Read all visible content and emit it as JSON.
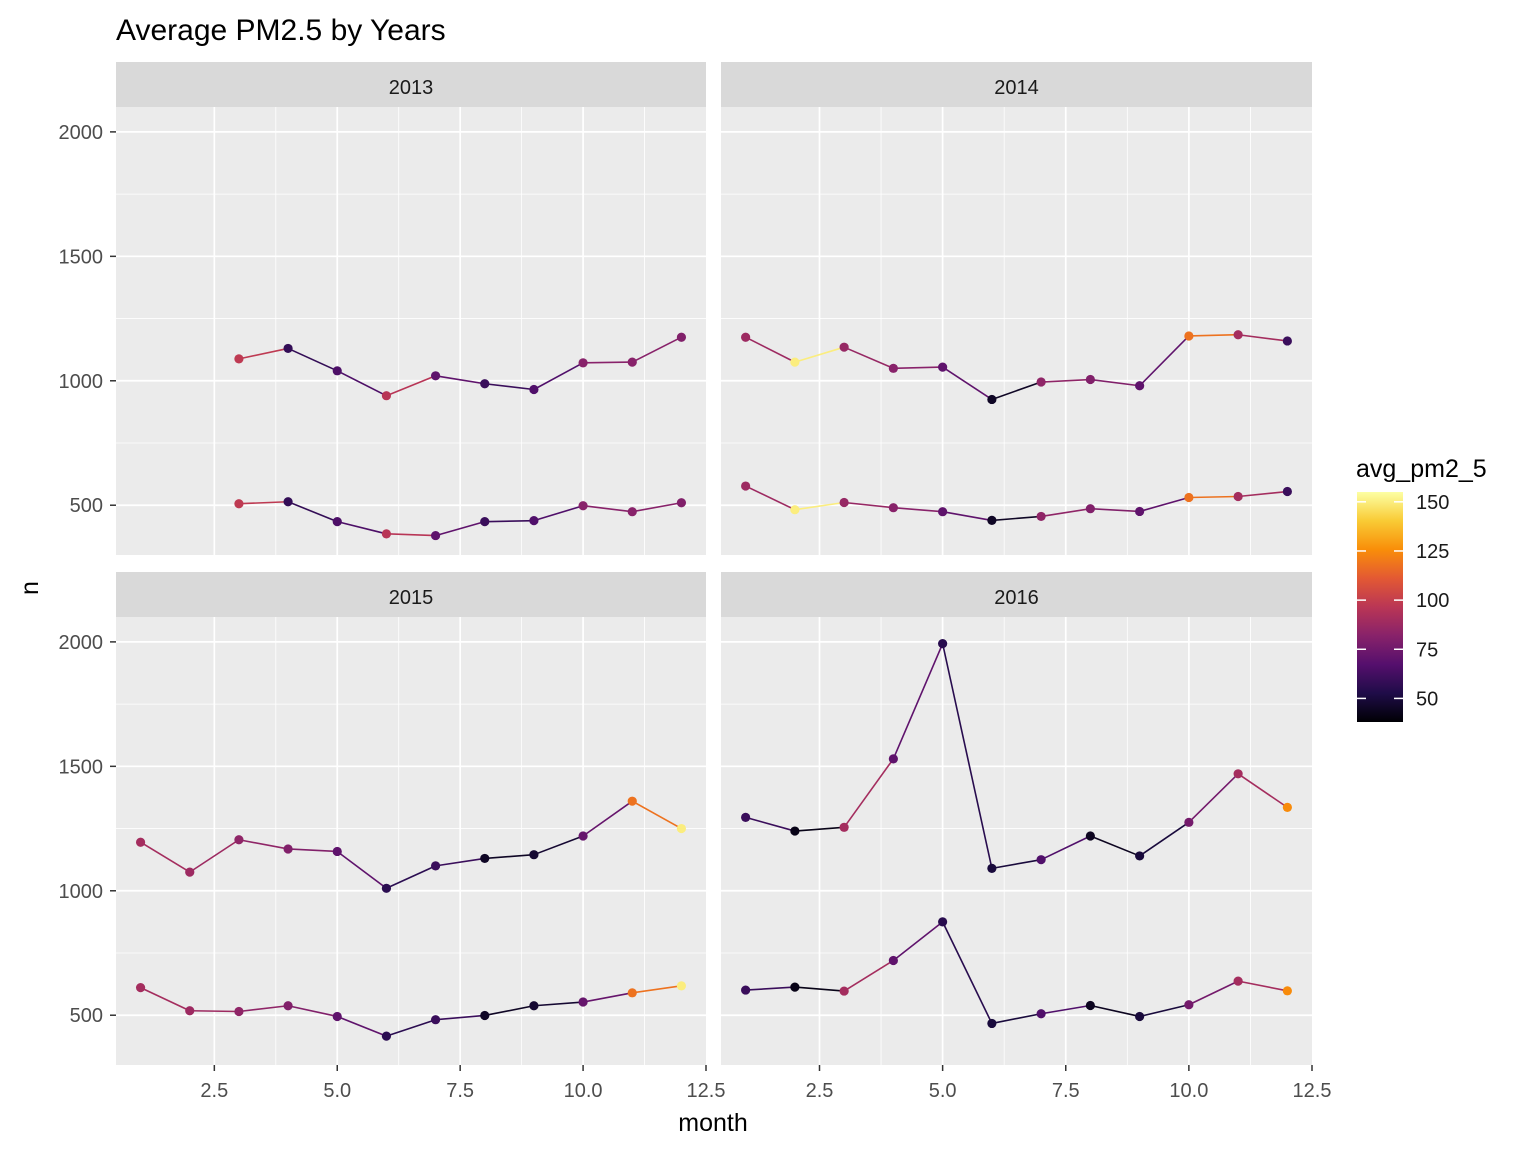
{
  "chart_data": {
    "type": "line",
    "title": "Average PM2.5 by Years",
    "xlabel": "month",
    "ylabel": "n",
    "xlim": [
      0.5,
      12.5
    ],
    "ylim": [
      300,
      2100
    ],
    "x_ticks": [
      {
        "value": 2.5,
        "label": "2.5"
      },
      {
        "value": 5,
        "label": "5.0"
      },
      {
        "value": 7.5,
        "label": "7.5"
      },
      {
        "value": 10,
        "label": "10.0"
      },
      {
        "value": 12.5,
        "label": "12.5"
      }
    ],
    "y_ticks": [
      {
        "value": 500,
        "label": "500"
      },
      {
        "value": 1000,
        "label": "1000"
      },
      {
        "value": 1500,
        "label": "1500"
      },
      {
        "value": 2000,
        "label": "2000"
      }
    ],
    "grid": true,
    "legend": {
      "title": "avg_pm2_5",
      "placement": "right",
      "min": 38,
      "max": 155,
      "ticks": [
        {
          "value": 50,
          "label": "50"
        },
        {
          "value": 75,
          "label": "75"
        },
        {
          "value": 100,
          "label": "100"
        },
        {
          "value": 125,
          "label": "125"
        },
        {
          "value": 150,
          "label": "150"
        }
      ],
      "palette": [
        "#000004",
        "#1f0c48",
        "#550f6d",
        "#88226a",
        "#ba3655",
        "#e35933",
        "#f98e09",
        "#f9cb35",
        "#fcffa4"
      ]
    },
    "panels": [
      {
        "label": "2013",
        "series": [
          {
            "x": [
              3,
              4,
              5,
              6,
              7,
              8,
              9,
              10,
              11,
              12
            ],
            "y": [
              1088,
              1130,
              1040,
              940,
              1020,
              988,
              965,
              1072,
              1075,
              1175
            ],
            "color": [
              98,
              58,
              65,
              96,
              70,
              60,
              66,
              82,
              82,
              80
            ]
          },
          {
            "x": [
              3,
              4,
              5,
              6,
              7,
              8,
              9,
              10,
              11,
              12
            ],
            "y": [
              506,
              514,
              434,
              385,
              378,
              434,
              438,
              498,
              474,
              510
            ],
            "color": [
              98,
              58,
              65,
              96,
              70,
              60,
              66,
              82,
              82,
              80
            ]
          }
        ]
      },
      {
        "label": "2014",
        "series": [
          {
            "x": [
              1,
              2,
              3,
              4,
              5,
              6,
              7,
              8,
              9,
              10,
              11,
              12
            ],
            "y": [
              1175,
              1075,
              1135,
              1050,
              1055,
              925,
              995,
              1005,
              980,
              1180,
              1185,
              1160
            ],
            "color": [
              88,
              150,
              86,
              82,
              70,
              45,
              84,
              80,
              70,
              118,
              90,
              60
            ]
          },
          {
            "x": [
              1,
              2,
              3,
              4,
              5,
              6,
              7,
              8,
              9,
              10,
              11,
              12
            ],
            "y": [
              577,
              482,
              511,
              490,
              474,
              439,
              455,
              486,
              475,
              531,
              535,
              555
            ],
            "color": [
              88,
              150,
              86,
              82,
              70,
              45,
              84,
              80,
              70,
              118,
              90,
              60
            ]
          }
        ]
      },
      {
        "label": "2015",
        "series": [
          {
            "x": [
              1,
              2,
              3,
              4,
              5,
              6,
              7,
              8,
              9,
              10,
              11,
              12
            ],
            "y": [
              1195,
              1075,
              1205,
              1168,
              1158,
              1010,
              1100,
              1130,
              1145,
              1220,
              1360,
              1250
            ],
            "color": [
              90,
              88,
              84,
              80,
              70,
              56,
              60,
              45,
              48,
              72,
              118,
              150
            ]
          },
          {
            "x": [
              1,
              2,
              3,
              4,
              5,
              6,
              7,
              8,
              9,
              10,
              11,
              12
            ],
            "y": [
              611,
              518,
              515,
              538,
              495,
              416,
              482,
              499,
              538,
              553,
              590,
              618
            ],
            "color": [
              90,
              88,
              84,
              80,
              70,
              56,
              60,
              45,
              48,
              72,
              118,
              150
            ]
          }
        ]
      },
      {
        "label": "2016",
        "series": [
          {
            "x": [
              1,
              2,
              3,
              4,
              5,
              6,
              7,
              8,
              9,
              10,
              11,
              12
            ],
            "y": [
              1295,
              1240,
              1255,
              1530,
              1993,
              1090,
              1125,
              1220,
              1140,
              1275,
              1470,
              1335
            ],
            "color": [
              60,
              42,
              90,
              70,
              55,
              50,
              66,
              44,
              50,
              76,
              90,
              125
            ]
          },
          {
            "x": [
              1,
              2,
              3,
              4,
              5,
              6,
              7,
              8,
              9,
              10,
              11,
              12
            ],
            "y": [
              601,
              613,
              597,
              720,
              875,
              467,
              506,
              539,
              495,
              542,
              637,
              598
            ],
            "color": [
              60,
              42,
              90,
              70,
              55,
              50,
              66,
              44,
              50,
              76,
              90,
              125
            ]
          }
        ]
      }
    ]
  }
}
